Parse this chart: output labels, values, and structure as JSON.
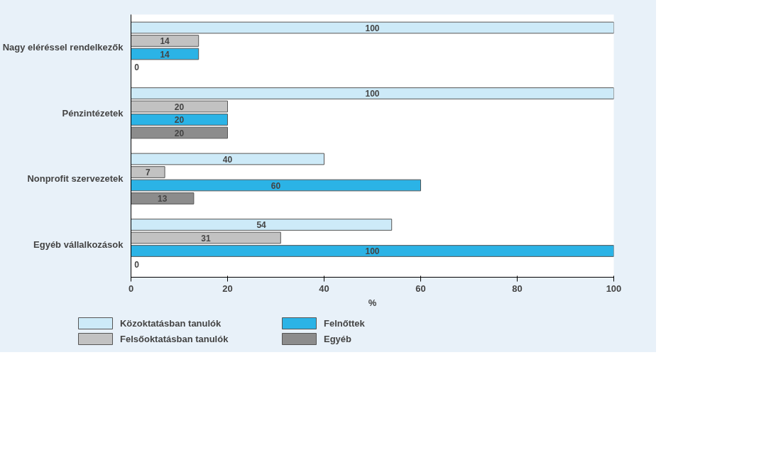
{
  "chart_data": {
    "type": "bar",
    "orientation": "horizontal",
    "categories": [
      "Nagy eléréssel rendelkezők",
      "Pénzintézetek",
      "Nonprofit szervezetek",
      "Egyéb vállalkozások"
    ],
    "series": [
      {
        "name": "Közoktatásban tanulók",
        "color": "#cdeaf8",
        "values": [
          100,
          100,
          40,
          54
        ]
      },
      {
        "name": "Felsőoktatásban tanulók",
        "color": "#c2c2c2",
        "values": [
          14,
          20,
          7,
          31
        ]
      },
      {
        "name": "Felnőttek",
        "color": "#2bb3e6",
        "values": [
          14,
          20,
          60,
          100
        ]
      },
      {
        "name": "Egyéb",
        "color": "#8c8c8c",
        "values": [
          0,
          20,
          13,
          0
        ]
      }
    ],
    "xlabel": "%",
    "xlim": [
      0,
      100
    ],
    "xticks": [
      0,
      20,
      40,
      60,
      80,
      100
    ],
    "data_labels": true,
    "legend": "bottom",
    "grid": false
  }
}
